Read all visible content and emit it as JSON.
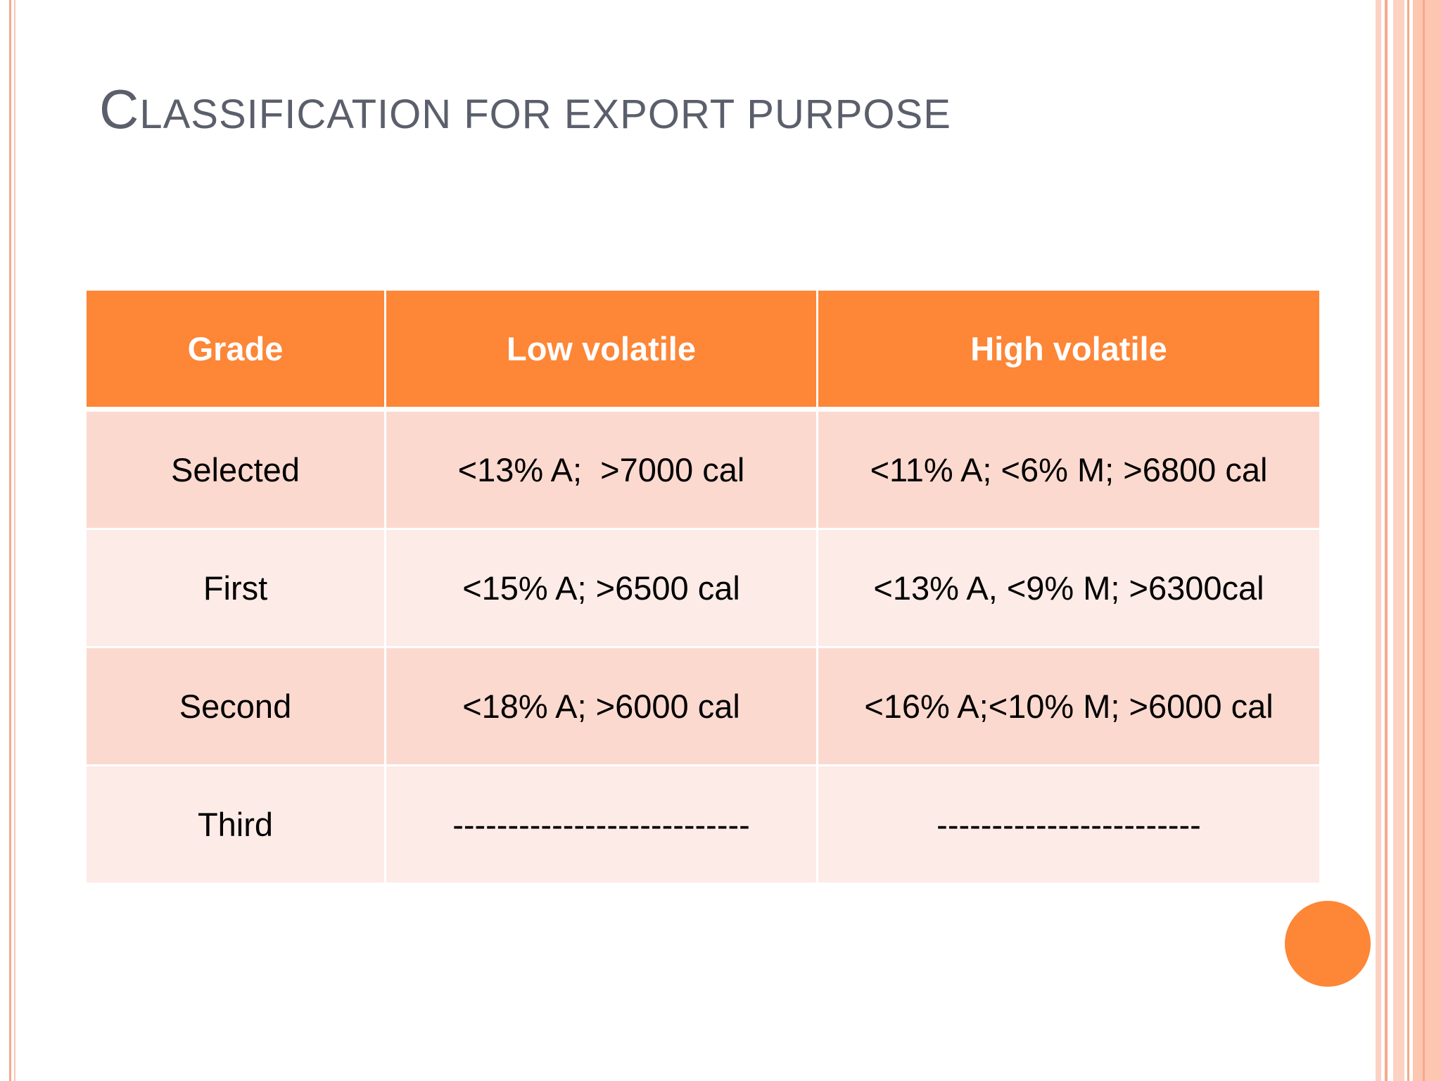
{
  "title": "CLASSIFICATION FOR EXPORT PURPOSE",
  "table": {
    "header": [
      "Grade",
      "Low volatile",
      "High volatile"
    ],
    "rows": [
      [
        "Selected",
        "<13% A;  >7000 cal",
        "<11% A; <6% M; >6800 cal"
      ],
      [
        "First",
        "<15% A; >6500 cal",
        "<13% A, <9% M; >6300cal"
      ],
      [
        "Second",
        "<18% A; >6000 cal",
        "<16% A;<10% M; >6000 cal"
      ],
      [
        "Third",
        "---------------------------",
        "------------------------"
      ]
    ]
  }
}
